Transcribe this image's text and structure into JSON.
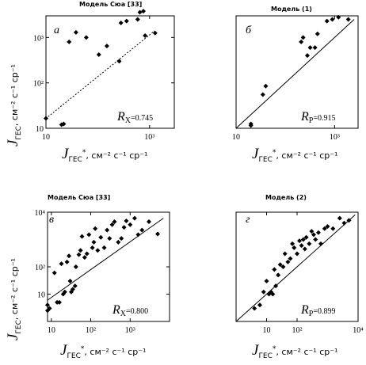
{
  "chart_data": [
    {
      "id": "a",
      "type": "scatter",
      "title": "Модель Сюа [33]",
      "panel_label": "а",
      "xlog": true,
      "ylog": true,
      "xlim": [
        10,
        3000
      ],
      "ylim": [
        10,
        3000
      ],
      "x_ticks": [
        "10",
        "10³"
      ],
      "y_ticks": [
        "10",
        "10²",
        "10³"
      ],
      "correlation": {
        "symbol": "R",
        "subscript": "X",
        "value": "=0.745"
      },
      "points": [
        [
          10,
          16.5
        ],
        [
          20,
          12
        ],
        [
          22,
          12.5
        ],
        [
          28,
          800
        ],
        [
          38,
          1300
        ],
        [
          60,
          1000
        ],
        [
          105,
          420
        ],
        [
          150,
          650
        ],
        [
          260,
          300
        ],
        [
          280,
          2100
        ],
        [
          360,
          2300
        ],
        [
          590,
          2500
        ],
        [
          650,
          3600
        ],
        [
          760,
          3800
        ],
        [
          820,
          1100
        ],
        [
          1280,
          1250
        ]
      ],
      "fit": [
        [
          11,
          18
        ],
        [
          1250,
          1400
        ]
      ],
      "fit_style": "dashed"
    },
    {
      "id": "b",
      "type": "scatter",
      "title": "Модель (1)",
      "panel_label": "б",
      "xlog": true,
      "ylog": true,
      "xlim": [
        10,
        3000
      ],
      "ylim": [
        10,
        3000
      ],
      "x_ticks": [
        "10",
        "10³"
      ],
      "y_ticks": [],
      "correlation": {
        "symbol": "R",
        "subscript": "P",
        "value": "=0.915"
      },
      "points": [
        [
          20,
          12.5
        ],
        [
          20,
          11.5
        ],
        [
          35,
          55
        ],
        [
          40,
          85
        ],
        [
          210,
          800
        ],
        [
          230,
          1000
        ],
        [
          280,
          400
        ],
        [
          320,
          600
        ],
        [
          400,
          600
        ],
        [
          450,
          1200
        ],
        [
          700,
          2300
        ],
        [
          900,
          2500
        ],
        [
          1200,
          2800
        ],
        [
          1900,
          2500
        ]
      ],
      "fit": [
        [
          10,
          10
        ],
        [
          2500,
          2500
        ]
      ],
      "fit_style": "solid"
    },
    {
      "id": "c",
      "type": "scatter",
      "title": "Модель Сюа [33]",
      "panel_label": "в",
      "xlog": true,
      "ylog": true,
      "xlim": [
        8,
        10000
      ],
      "ylim": [
        1,
        10000
      ],
      "x_ticks": [
        "10",
        "10²",
        "10³"
      ],
      "y_ticks": [
        "10",
        "10²",
        "10⁴"
      ],
      "correlation": {
        "symbol": "R",
        "subscript": "X",
        "value": "=0.800"
      },
      "points": [
        [
          8,
          4
        ],
        [
          8,
          2.5
        ],
        [
          9,
          3
        ],
        [
          12,
          60
        ],
        [
          14,
          5
        ],
        [
          16,
          5
        ],
        [
          18,
          130
        ],
        [
          20,
          10
        ],
        [
          22,
          12
        ],
        [
          25,
          150
        ],
        [
          28,
          250
        ],
        [
          30,
          30
        ],
        [
          32,
          12
        ],
        [
          35,
          15
        ],
        [
          40,
          20
        ],
        [
          42,
          100
        ],
        [
          50,
          280
        ],
        [
          55,
          400
        ],
        [
          60,
          1300
        ],
        [
          70,
          220
        ],
        [
          80,
          300
        ],
        [
          90,
          1500
        ],
        [
          110,
          500
        ],
        [
          120,
          800
        ],
        [
          130,
          2500
        ],
        [
          150,
          400
        ],
        [
          180,
          1200
        ],
        [
          220,
          500
        ],
        [
          260,
          2200
        ],
        [
          300,
          1100
        ],
        [
          350,
          3500
        ],
        [
          400,
          4500
        ],
        [
          500,
          800
        ],
        [
          600,
          1100
        ],
        [
          700,
          2800
        ],
        [
          800,
          4800
        ],
        [
          1000,
          3500
        ],
        [
          1300,
          6000
        ],
        [
          1600,
          1500
        ],
        [
          2000,
          2200
        ],
        [
          3000,
          4500
        ],
        [
          5000,
          1600
        ]
      ],
      "fit": [
        [
          8,
          6
        ],
        [
          7000,
          6000
        ]
      ],
      "fit_style": "solid"
    },
    {
      "id": "d",
      "type": "scatter",
      "title": "Модель (2)",
      "panel_label": "г",
      "xlog": true,
      "ylog": true,
      "xlim": [
        1,
        10000
      ],
      "ylim": [
        1,
        10000
      ],
      "x_ticks": [
        "10",
        "10²",
        "10⁴"
      ],
      "y_ticks": [],
      "correlation": {
        "symbol": "R",
        "subscript": "P",
        "value": "=0.899"
      },
      "points": [
        [
          4,
          3
        ],
        [
          6,
          4
        ],
        [
          8,
          12
        ],
        [
          10,
          30
        ],
        [
          12,
          10
        ],
        [
          14,
          12
        ],
        [
          16,
          10
        ],
        [
          18,
          80
        ],
        [
          20,
          20
        ],
        [
          24,
          50
        ],
        [
          28,
          120
        ],
        [
          35,
          100
        ],
        [
          40,
          300
        ],
        [
          50,
          150
        ],
        [
          60,
          200
        ],
        [
          70,
          700
        ],
        [
          80,
          500
        ],
        [
          100,
          300
        ],
        [
          120,
          900
        ],
        [
          140,
          600
        ],
        [
          160,
          1000
        ],
        [
          180,
          450
        ],
        [
          200,
          1200
        ],
        [
          250,
          700
        ],
        [
          300,
          2000
        ],
        [
          350,
          1500
        ],
        [
          400,
          1000
        ],
        [
          500,
          1800
        ],
        [
          600,
          700
        ],
        [
          800,
          2500
        ],
        [
          1000,
          3000
        ],
        [
          1500,
          2500
        ],
        [
          2500,
          6000
        ],
        [
          3500,
          4000
        ],
        [
          5000,
          5000
        ]
      ],
      "fit": [
        [
          1,
          1
        ],
        [
          8000,
          8000
        ]
      ],
      "fit_style": "solid"
    }
  ],
  "x_axis_label": {
    "main": "J",
    "subscript": "ГЕС",
    "superscript": "*",
    "unit": ", см⁻² с⁻¹ ср⁻¹"
  },
  "y_axis_label": {
    "main": "J",
    "subscript": "ГЕС",
    "unit": ", см⁻² с⁻¹ ср⁻¹"
  }
}
